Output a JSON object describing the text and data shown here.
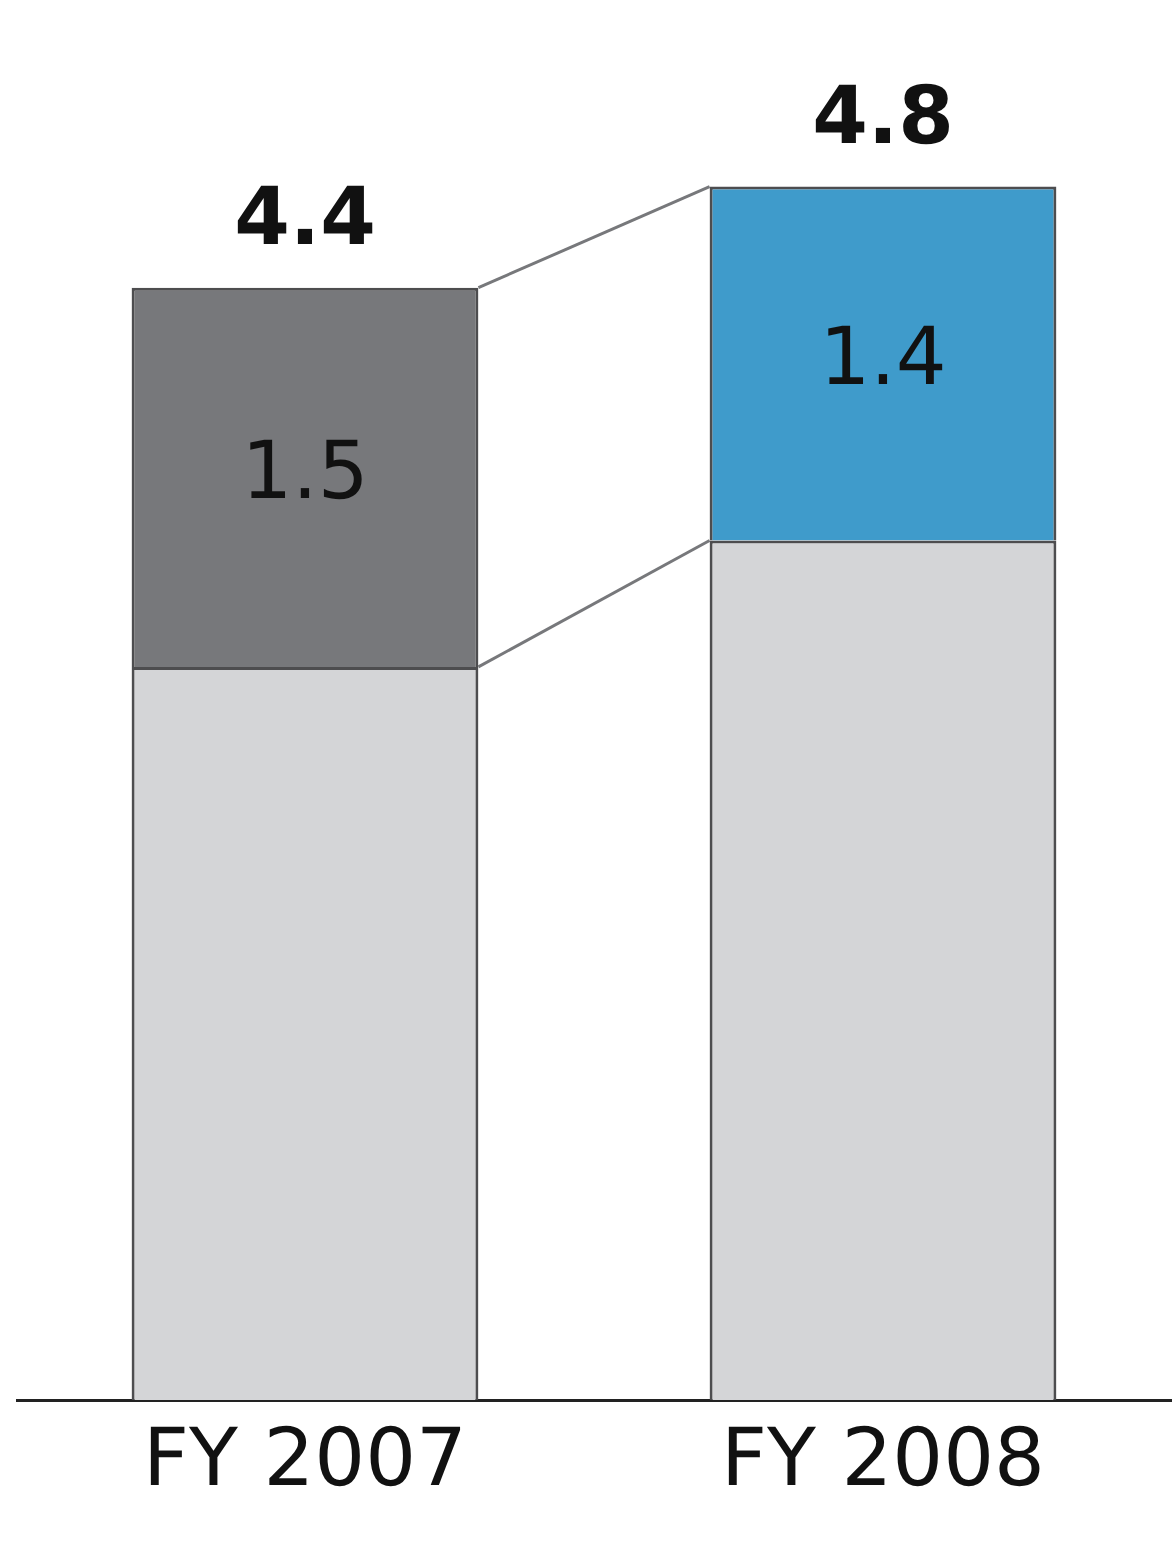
{
  "chart_data": {
    "type": "bar",
    "stacked": true,
    "categories": [
      "FY 2007",
      "FY 2008"
    ],
    "series": [
      {
        "colors": [
          "#d4d5d7",
          "#d4d5d7"
        ],
        "values": [
          2.9,
          3.4
        ]
      },
      {
        "colors": [
          "#77787b",
          "#3f9bcb"
        ],
        "values": [
          1.5,
          1.4
        ],
        "value_labels": [
          "1.5",
          "1.4"
        ]
      }
    ],
    "totals": [
      "4.4",
      "4.8"
    ],
    "tick_labels": "x",
    "grid": false,
    "legend": false
  }
}
